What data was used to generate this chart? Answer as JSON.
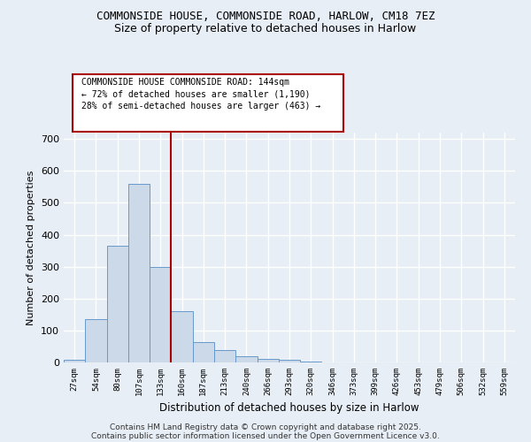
{
  "title1": "COMMONSIDE HOUSE, COMMONSIDE ROAD, HARLOW, CM18 7EZ",
  "title2": "Size of property relative to detached houses in Harlow",
  "xlabel": "Distribution of detached houses by size in Harlow",
  "ylabel": "Number of detached properties",
  "bin_labels": [
    "27sqm",
    "54sqm",
    "80sqm",
    "107sqm",
    "133sqm",
    "160sqm",
    "187sqm",
    "213sqm",
    "240sqm",
    "266sqm",
    "293sqm",
    "320sqm",
    "346sqm",
    "373sqm",
    "399sqm",
    "426sqm",
    "453sqm",
    "479sqm",
    "506sqm",
    "532sqm",
    "559sqm"
  ],
  "bar_heights": [
    8,
    135,
    365,
    560,
    300,
    162,
    65,
    40,
    20,
    12,
    7,
    4,
    1,
    0,
    0,
    0,
    0,
    0,
    0,
    0,
    0
  ],
  "bar_color": "#ccd9e8",
  "bar_edge_color": "#6699cc",
  "vline_x": 4.5,
  "vline_color": "#aa0000",
  "annotation_text": "COMMONSIDE HOUSE COMMONSIDE ROAD: 144sqm\n← 72% of detached houses are smaller (1,190)\n28% of semi-detached houses are larger (463) →",
  "annotation_box_color": "#ffffff",
  "annotation_border_color": "#aa0000",
  "ylim": [
    0,
    720
  ],
  "yticks": [
    0,
    100,
    200,
    300,
    400,
    500,
    600,
    700
  ],
  "footer1": "Contains HM Land Registry data © Crown copyright and database right 2025.",
  "footer2": "Contains public sector information licensed under the Open Government Licence v3.0.",
  "background_color": "#e8eef5",
  "plot_bg_color": "#e8eef5",
  "grid_color": "#ffffff"
}
